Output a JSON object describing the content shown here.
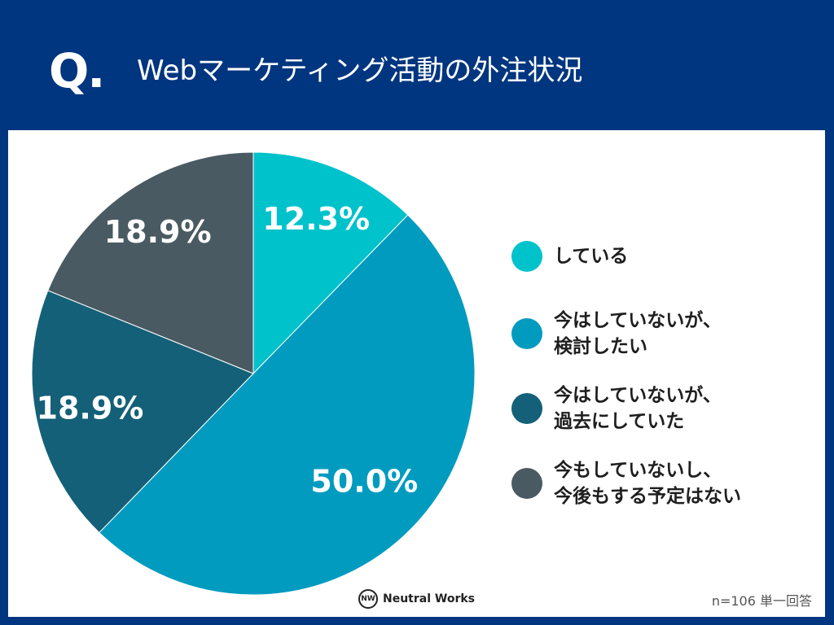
{
  "header": {
    "q_mark": "Q.",
    "title": "Webマーケティング活動の外注状況"
  },
  "chart_data": {
    "type": "pie",
    "title": "Webマーケティング活動の外注状況",
    "slices": [
      {
        "label": "している",
        "value": 12.3,
        "display": "12.3%",
        "color": "#00c2cb"
      },
      {
        "label": "今はしていないが、\n検討したい",
        "value": 50.0,
        "display": "50.0%",
        "color": "#009bbf"
      },
      {
        "label": "今はしていないが、\n過去にしていた",
        "value": 18.9,
        "display": "18.9%",
        "color": "#146078"
      },
      {
        "label": "今もしていないし、\n今後もする予定はない",
        "value": 18.9,
        "display": "18.9%",
        "color": "#4a5a62"
      }
    ],
    "legend_position": "right"
  },
  "footer": {
    "logo_icon": "NW",
    "logo_text": "Neutral Works",
    "note": "n=106 単一回答"
  }
}
